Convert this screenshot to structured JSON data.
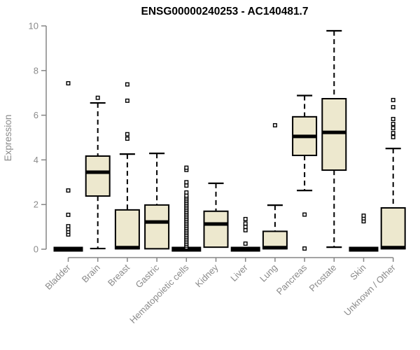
{
  "chart_data": {
    "type": "boxplot",
    "title": "ENSG00000240253 - AC140481.7",
    "ylabel": "Expression",
    "xlabel": "",
    "ylim": [
      0,
      10
    ],
    "yticks": [
      0,
      2,
      4,
      6,
      8,
      10
    ],
    "grid": false,
    "legend": null,
    "categories": [
      "Bladder",
      "Brain",
      "Breast",
      "Gastric",
      "Hematopoietic cells",
      "Kidney",
      "Liver",
      "Lung",
      "Pancreas",
      "Prostate",
      "Skin",
      "Unknown / Other"
    ],
    "series": [
      {
        "name": "Bladder",
        "whisker_low": 0,
        "q1": 0,
        "median": 0,
        "q3": 0,
        "whisker_high": 0,
        "outliers": [
          0.66,
          0.78,
          0.9,
          1.03,
          1.54,
          2.63,
          7.43
        ]
      },
      {
        "name": "Brain",
        "whisker_low": 0.03,
        "q1": 2.38,
        "median": 3.45,
        "q3": 4.17,
        "whisker_high": 6.55,
        "outliers": [
          6.78
        ]
      },
      {
        "name": "Breast",
        "whisker_low": 0,
        "q1": 0.02,
        "median": 0.07,
        "q3": 1.76,
        "whisker_high": 4.26,
        "outliers": [
          4.95,
          5.15,
          6.65,
          7.38
        ]
      },
      {
        "name": "Gastric",
        "whisker_low": 0.02,
        "q1": 0.02,
        "median": 1.22,
        "q3": 1.98,
        "whisker_high": 4.29,
        "outliers": []
      },
      {
        "name": "Hematopoietic cells",
        "whisker_low": 0,
        "q1": 0,
        "median": 0,
        "q3": 0,
        "whisker_high": 0,
        "outliers": [
          0.08,
          0.16,
          0.24,
          0.32,
          0.4,
          0.48,
          0.56,
          0.64,
          0.72,
          0.8,
          0.88,
          0.96,
          1.04,
          1.12,
          1.2,
          1.28,
          1.36,
          1.44,
          1.52,
          1.6,
          1.68,
          1.76,
          1.84,
          1.92,
          2.0,
          2.08,
          2.16,
          2.24,
          2.32,
          2.4,
          2.54,
          2.85,
          3.0,
          3.55,
          3.65
        ]
      },
      {
        "name": "Kidney",
        "whisker_low": 0.09,
        "q1": 0.09,
        "median": 1.13,
        "q3": 1.7,
        "whisker_high": 2.95,
        "outliers": []
      },
      {
        "name": "Liver",
        "whisker_low": 0,
        "q1": 0,
        "median": 0,
        "q3": 0,
        "whisker_high": 0,
        "outliers": [
          0.25,
          0.85,
          1.0,
          1.15,
          1.35
        ]
      },
      {
        "name": "Lung",
        "whisker_low": 0,
        "q1": 0.02,
        "median": 0.07,
        "q3": 0.8,
        "whisker_high": 1.97,
        "outliers": [
          5.55
        ]
      },
      {
        "name": "Pancreas",
        "whisker_low": 2.63,
        "q1": 4.2,
        "median": 5.05,
        "q3": 5.93,
        "whisker_high": 6.88,
        "outliers": [
          1.55,
          0.03
        ]
      },
      {
        "name": "Prostate",
        "whisker_low": 0.09,
        "q1": 3.54,
        "median": 5.23,
        "q3": 6.74,
        "whisker_high": 9.78,
        "outliers": []
      },
      {
        "name": "Skin",
        "whisker_low": 0,
        "q1": 0,
        "median": 0,
        "q3": 0,
        "whisker_high": 0,
        "outliers": [
          1.25,
          1.38,
          1.5
        ]
      },
      {
        "name": "Unknown / Other",
        "whisker_low": 0,
        "q1": 0.02,
        "median": 0.07,
        "q3": 1.85,
        "whisker_high": 4.51,
        "outliers": [
          5.02,
          5.2,
          5.42,
          5.61,
          5.83,
          6.36,
          6.68
        ]
      }
    ],
    "colors": {
      "box_fill": "#EDE8CE",
      "box_stroke": "#000000",
      "median": "#000000",
      "whisker": "#000000",
      "axis": "#858585",
      "tick_label": "#8a8a8a",
      "title": "#000000",
      "background": "#ffffff"
    }
  }
}
